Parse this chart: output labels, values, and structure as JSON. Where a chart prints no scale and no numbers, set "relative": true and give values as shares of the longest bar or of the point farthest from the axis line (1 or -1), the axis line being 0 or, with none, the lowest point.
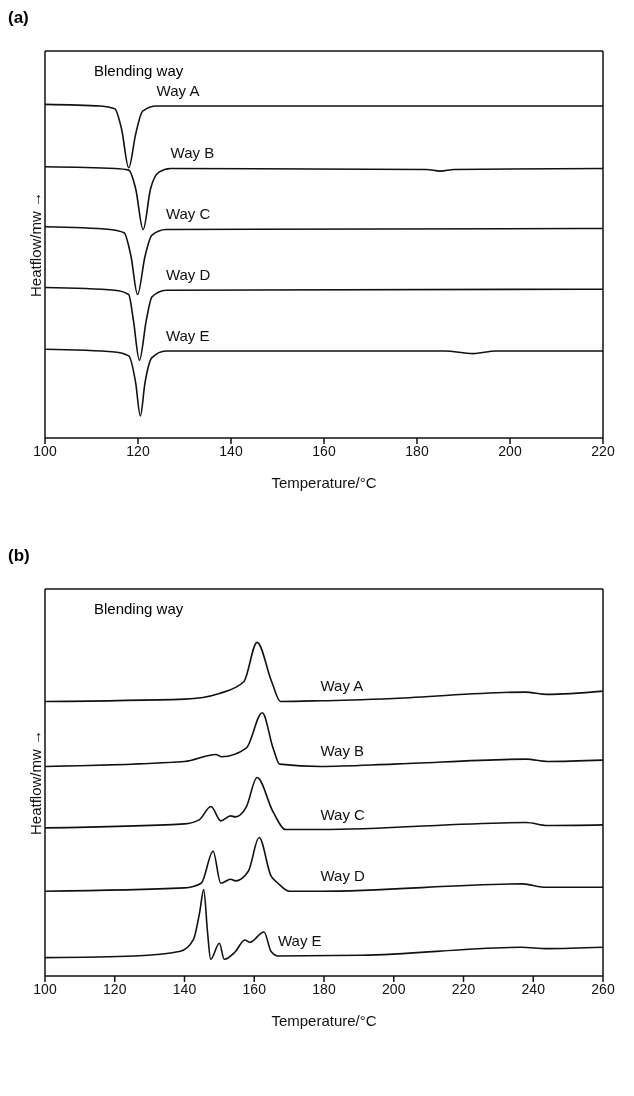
{
  "chart_data": [
    {
      "type": "line",
      "title": "(a)",
      "annotations": [
        "Blending way"
      ],
      "xlabel": "Temperature/°C",
      "ylabel": "Heatflow/mw →",
      "relative": true,
      "xlim": [
        100,
        220
      ],
      "xticks": [
        100,
        120,
        140,
        160,
        180,
        200,
        220
      ],
      "series": [
        {
          "name": "Way A",
          "color": "#111111",
          "x": [
            100,
            112,
            115,
            116.5,
            118,
            119.5,
            121,
            124,
            220
          ],
          "values": [
            1.0,
            0.995,
            0.987,
            0.924,
            0.81,
            0.911,
            0.98,
            0.995,
            0.995
          ]
        },
        {
          "name": "Way B",
          "color": "#111111",
          "x": [
            100,
            115,
            118,
            119.5,
            121.1,
            122.7,
            124.5,
            127,
            182,
            185,
            188,
            220
          ],
          "values": [
            0.813,
            0.808,
            0.803,
            0.747,
            0.625,
            0.747,
            0.797,
            0.808,
            0.805,
            0.8,
            0.805,
            0.808
          ]
        },
        {
          "name": "Way C",
          "color": "#111111",
          "x": [
            100,
            114,
            117,
            118.5,
            119.9,
            121.5,
            123,
            126,
            220
          ],
          "values": [
            0.633,
            0.625,
            0.615,
            0.544,
            0.43,
            0.544,
            0.608,
            0.625,
            0.628
          ]
        },
        {
          "name": "Way D",
          "color": "#111111",
          "x": [
            100,
            115,
            118,
            119,
            120.3,
            121.8,
            123,
            126,
            220
          ],
          "values": [
            0.451,
            0.443,
            0.43,
            0.354,
            0.233,
            0.354,
            0.423,
            0.443,
            0.446
          ]
        },
        {
          "name": "Way E",
          "color": "#111111",
          "x": [
            100,
            115,
            118,
            119.5,
            120.5,
            121.5,
            123,
            126,
            186,
            192,
            197,
            220
          ],
          "values": [
            0.266,
            0.258,
            0.246,
            0.165,
            0.066,
            0.165,
            0.241,
            0.261,
            0.261,
            0.253,
            0.261,
            0.261
          ]
        }
      ]
    },
    {
      "type": "line",
      "title": "(b)",
      "annotations": [
        "Blending way"
      ],
      "xlabel": "Temperature/°C",
      "ylabel": "Heatflow/mw →",
      "relative": true,
      "xlim": [
        100,
        260
      ],
      "xticks": [
        100,
        120,
        140,
        160,
        180,
        200,
        220,
        240,
        260
      ],
      "series": [
        {
          "name": "Way A",
          "color": "#111111",
          "x": [
            100,
            140,
            150,
            157,
            160.8,
            165,
            167.5,
            179,
            200,
            237.7,
            244,
            260
          ],
          "values": [
            0.823,
            0.83,
            0.847,
            0.882,
            1.0,
            0.882,
            0.823,
            0.825,
            0.832,
            0.851,
            0.844,
            0.854
          ]
        },
        {
          "name": "Way B",
          "color": "#111111",
          "x": [
            100,
            140,
            149,
            150.7,
            157.7,
            162.3,
            165.4,
            167.3,
            179,
            200,
            238,
            244,
            260
          ],
          "values": [
            0.628,
            0.643,
            0.664,
            0.657,
            0.683,
            0.789,
            0.683,
            0.635,
            0.628,
            0.635,
            0.65,
            0.643,
            0.647
          ]
        },
        {
          "name": "Way C",
          "color": "#111111",
          "x": [
            100,
            140,
            144.2,
            147.6,
            150.4,
            153.2,
            154.6,
            157.7,
            160.8,
            165.4,
            169,
            179,
            238,
            244,
            260
          ],
          "values": [
            0.444,
            0.456,
            0.468,
            0.508,
            0.465,
            0.48,
            0.477,
            0.506,
            0.595,
            0.492,
            0.439,
            0.439,
            0.46,
            0.451,
            0.453
          ]
        },
        {
          "name": "Way D",
          "color": "#111111",
          "x": [
            100,
            140,
            144.8,
            148.2,
            150.4,
            153.2,
            154.6,
            158.3,
            161.4,
            164.8,
            166.8,
            170.1,
            179,
            237,
            243,
            260
          ],
          "values": [
            0.254,
            0.264,
            0.278,
            0.374,
            0.278,
            0.29,
            0.285,
            0.314,
            0.415,
            0.3,
            0.278,
            0.254,
            0.254,
            0.276,
            0.266,
            0.266
          ]
        },
        {
          "name": "Way E",
          "color": "#111111",
          "x": [
            100,
            125.7,
            138.8,
            142.5,
            144.4,
            145.5,
            146.6,
            147.5,
            150,
            151.4,
            154.5,
            157.3,
            158.7,
            162.8,
            164.8,
            166.8,
            190.8,
            236.6,
            244,
            260
          ],
          "values": [
            0.055,
            0.06,
            0.074,
            0.108,
            0.194,
            0.259,
            0.132,
            0.05,
            0.098,
            0.05,
            0.072,
            0.108,
            0.101,
            0.132,
            0.074,
            0.06,
            0.062,
            0.086,
            0.082,
            0.086
          ]
        }
      ]
    }
  ]
}
